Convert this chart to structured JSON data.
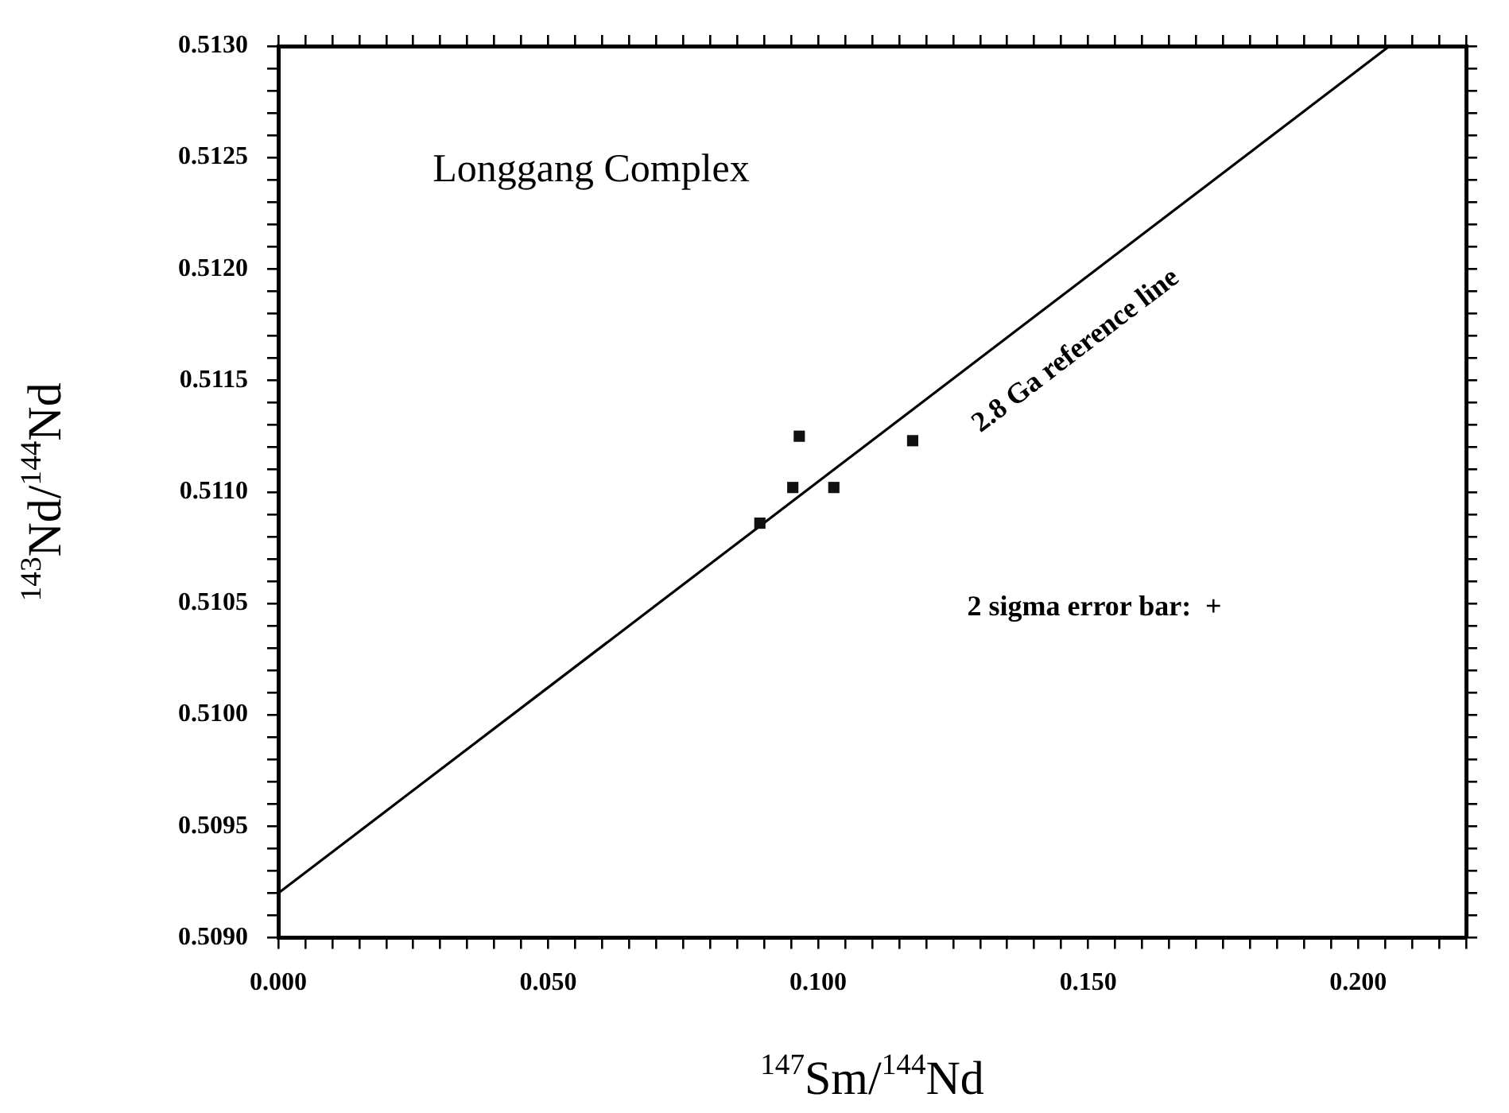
{
  "chart_data": {
    "type": "scatter",
    "xlabel": "$^{147}$Sm/$^{144}$Nd",
    "ylabel": "$^{143}$Nd/$^{144}$Nd",
    "annotations": [
      "Longgang Complex",
      "2.8 Ga reference line",
      "2 sigma error bar:  +"
    ],
    "series": [
      {
        "type": "scatter",
        "x": [
          0.0892,
          0.0953,
          0.0965,
          0.1029,
          0.1175
        ],
        "values": [
          0.51086,
          0.51102,
          0.51125,
          0.51102,
          0.51123
        ],
        "color": "#111111",
        "marker": "square"
      },
      {
        "type": "line",
        "x": [
          0,
          0.2058
        ],
        "values": [
          0.5092,
          0.513
        ],
        "color": "#000000",
        "marker": "none"
      }
    ],
    "xlim": [
      0,
      0.22
    ],
    "ylim": [
      0.509,
      0.513
    ],
    "xticks": [
      {
        "value": 0,
        "label": "0.000"
      },
      {
        "value": 0.005,
        "label": null
      },
      {
        "value": 0.01,
        "label": null
      },
      {
        "value": 0.015,
        "label": null
      },
      {
        "value": 0.02,
        "label": null
      },
      {
        "value": 0.025,
        "label": null
      },
      {
        "value": 0.03,
        "label": null
      },
      {
        "value": 0.035,
        "label": null
      },
      {
        "value": 0.04,
        "label": null
      },
      {
        "value": 0.045,
        "label": null
      },
      {
        "value": 0.05,
        "label": "0.050"
      },
      {
        "value": 0.055,
        "label": null
      },
      {
        "value": 0.06,
        "label": null
      },
      {
        "value": 0.065,
        "label": null
      },
      {
        "value": 0.07,
        "label": null
      },
      {
        "value": 0.075,
        "label": null
      },
      {
        "value": 0.08,
        "label": null
      },
      {
        "value": 0.085,
        "label": null
      },
      {
        "value": 0.09,
        "label": null
      },
      {
        "value": 0.095,
        "label": null
      },
      {
        "value": 0.1,
        "label": "0.100"
      },
      {
        "value": 0.105,
        "label": null
      },
      {
        "value": 0.11,
        "label": null
      },
      {
        "value": 0.115,
        "label": null
      },
      {
        "value": 0.12,
        "label": null
      },
      {
        "value": 0.125,
        "label": null
      },
      {
        "value": 0.13,
        "label": null
      },
      {
        "value": 0.135,
        "label": null
      },
      {
        "value": 0.14,
        "label": null
      },
      {
        "value": 0.145,
        "label": null
      },
      {
        "value": 0.15,
        "label": "0.150"
      },
      {
        "value": 0.155,
        "label": null
      },
      {
        "value": 0.16,
        "label": null
      },
      {
        "value": 0.165,
        "label": null
      },
      {
        "value": 0.17,
        "label": null
      },
      {
        "value": 0.175,
        "label": null
      },
      {
        "value": 0.18,
        "label": null
      },
      {
        "value": 0.185,
        "label": null
      },
      {
        "value": 0.19,
        "label": null
      },
      {
        "value": 0.195,
        "label": null
      },
      {
        "value": 0.2,
        "label": "0.200"
      },
      {
        "value": 0.205,
        "label": null
      },
      {
        "value": 0.21,
        "label": null
      },
      {
        "value": 0.215,
        "label": null
      },
      {
        "value": 0.22,
        "label": null
      }
    ],
    "yticks": [
      {
        "value": 0.509,
        "label": "0.5090"
      },
      {
        "value": 0.5091,
        "label": null
      },
      {
        "value": 0.5092,
        "label": null
      },
      {
        "value": 0.5093,
        "label": null
      },
      {
        "value": 0.5094,
        "label": null
      },
      {
        "value": 0.5095,
        "label": "0.5095"
      },
      {
        "value": 0.5096,
        "label": null
      },
      {
        "value": 0.5097,
        "label": null
      },
      {
        "value": 0.5098,
        "label": null
      },
      {
        "value": 0.5099,
        "label": null
      },
      {
        "value": 0.51,
        "label": "0.5100"
      },
      {
        "value": 0.5101,
        "label": null
      },
      {
        "value": 0.5102,
        "label": null
      },
      {
        "value": 0.5103,
        "label": null
      },
      {
        "value": 0.5104,
        "label": null
      },
      {
        "value": 0.5105,
        "label": "0.5105"
      },
      {
        "value": 0.5106,
        "label": null
      },
      {
        "value": 0.5107,
        "label": null
      },
      {
        "value": 0.5108,
        "label": null
      },
      {
        "value": 0.5109,
        "label": null
      },
      {
        "value": 0.511,
        "label": "0.5110"
      },
      {
        "value": 0.5111,
        "label": null
      },
      {
        "value": 0.5112,
        "label": null
      },
      {
        "value": 0.5113,
        "label": null
      },
      {
        "value": 0.5114,
        "label": null
      },
      {
        "value": 0.5115,
        "label": "0.5115"
      },
      {
        "value": 0.5116,
        "label": null
      },
      {
        "value": 0.5117,
        "label": null
      },
      {
        "value": 0.5118,
        "label": null
      },
      {
        "value": 0.5119,
        "label": null
      },
      {
        "value": 0.512,
        "label": "0.5120"
      },
      {
        "value": 0.5121,
        "label": null
      },
      {
        "value": 0.5122,
        "label": null
      },
      {
        "value": 0.5123,
        "label": null
      },
      {
        "value": 0.5124,
        "label": null
      },
      {
        "value": 0.5125,
        "label": "0.5125"
      },
      {
        "value": 0.5126,
        "label": null
      },
      {
        "value": 0.5127,
        "label": null
      },
      {
        "value": 0.5128,
        "label": null
      },
      {
        "value": 0.5129,
        "label": null
      },
      {
        "value": 0.513,
        "label": "0.5130"
      }
    ],
    "grid": false,
    "legend": false,
    "line_style": "solid"
  }
}
